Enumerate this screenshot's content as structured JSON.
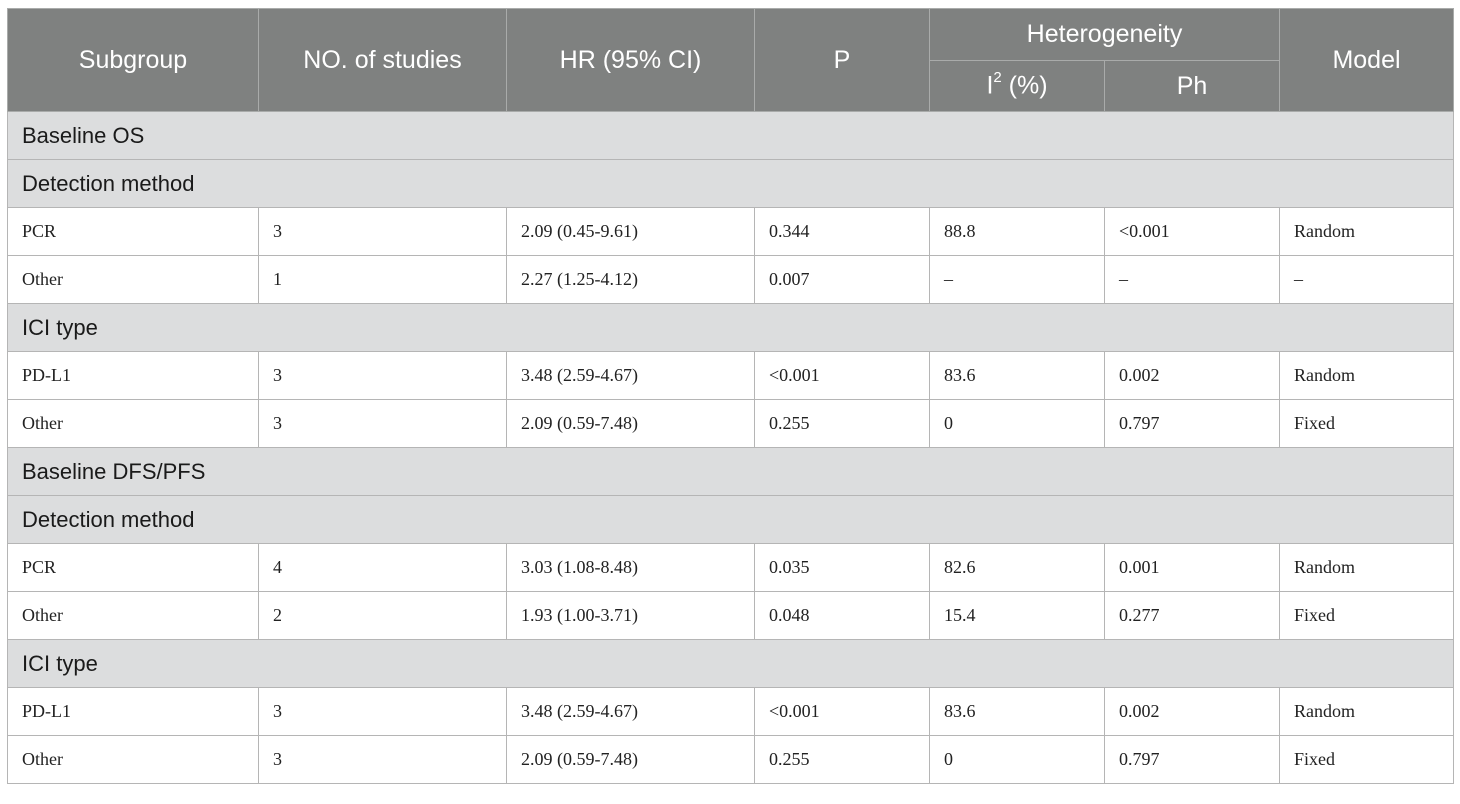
{
  "header": {
    "subgroup": "Subgroup",
    "no_of_studies": "NO. of studies",
    "hr": "HR (95% CI)",
    "p": "P",
    "heterogeneity": "Heterogeneity",
    "i2_base": "I",
    "i2_sup": "2",
    "i2_rest": " (%)",
    "ph": "Ph",
    "model": "Model"
  },
  "rows": [
    {
      "type": "section",
      "label": "Baseline OS"
    },
    {
      "type": "section",
      "label": "Detection method"
    },
    {
      "type": "data",
      "cells": [
        "PCR",
        "3",
        "2.09 (0.45-9.61)",
        "0.344",
        "88.8",
        "<0.001",
        "Random"
      ]
    },
    {
      "type": "data",
      "cells": [
        "Other",
        "1",
        "2.27 (1.25-4.12)",
        "0.007",
        "–",
        "–",
        "–"
      ]
    },
    {
      "type": "section",
      "label": "ICI type"
    },
    {
      "type": "data",
      "cells": [
        "PD-L1",
        "3",
        "3.48 (2.59-4.67)",
        "<0.001",
        "83.6",
        "0.002",
        "Random"
      ]
    },
    {
      "type": "data",
      "cells": [
        "Other",
        "3",
        "2.09 (0.59-7.48)",
        "0.255",
        "0",
        "0.797",
        "Fixed"
      ]
    },
    {
      "type": "section",
      "label": "Baseline DFS/PFS"
    },
    {
      "type": "section",
      "label": "Detection method"
    },
    {
      "type": "data",
      "cells": [
        "PCR",
        "4",
        "3.03 (1.08-8.48)",
        "0.035",
        "82.6",
        "0.001",
        "Random"
      ]
    },
    {
      "type": "data",
      "cells": [
        "Other",
        "2",
        "1.93 (1.00-3.71)",
        "0.048",
        "15.4",
        "0.277",
        "Fixed"
      ]
    },
    {
      "type": "section",
      "label": "ICI type"
    },
    {
      "type": "data",
      "cells": [
        "PD-L1",
        "3",
        "3.48 (2.59-4.67)",
        "<0.001",
        "83.6",
        "0.002",
        "Random"
      ]
    },
    {
      "type": "data",
      "cells": [
        "Other",
        "3",
        "2.09 (0.59-7.48)",
        "0.255",
        "0",
        "0.797",
        "Fixed"
      ]
    }
  ]
}
